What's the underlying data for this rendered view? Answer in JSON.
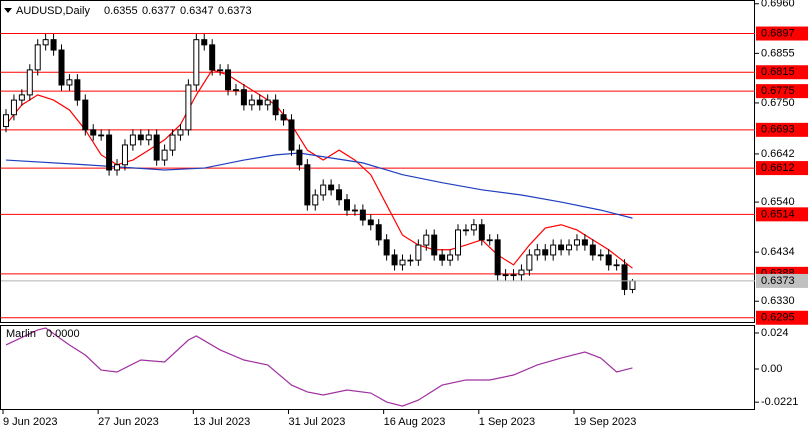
{
  "chart_data": {
    "type": "candlestick",
    "symbol": "AUDUSD,Daily",
    "up_color": "#ffffff",
    "down_color": "#000000",
    "categories": [
      "9 Jun 2023",
      null,
      null,
      null,
      null,
      null,
      null,
      null,
      null,
      null,
      null,
      null,
      "27 Jun 2023",
      null,
      null,
      null,
      null,
      null,
      null,
      null,
      null,
      null,
      null,
      null,
      "13 Jul 2023",
      null,
      null,
      null,
      null,
      null,
      null,
      null,
      null,
      null,
      null,
      null,
      "31 Jul 2023",
      null,
      null,
      null,
      null,
      null,
      null,
      null,
      null,
      null,
      null,
      null,
      "16 Aug 2023",
      null,
      null,
      null,
      null,
      null,
      null,
      null,
      null,
      null,
      null,
      null,
      "1 Sep 2023",
      null,
      null,
      null,
      null,
      null,
      null,
      null,
      null,
      null,
      null,
      null,
      "19 Sep 2023",
      null,
      null,
      null,
      null,
      null,
      null,
      null
    ],
    "ohlc": [
      [
        0.67,
        0.6737,
        0.6688,
        0.6725
      ],
      [
        0.6725,
        0.6768,
        0.6713,
        0.6756
      ],
      [
        0.6756,
        0.6779,
        0.6744,
        0.6767
      ],
      [
        0.6767,
        0.6832,
        0.6755,
        0.682
      ],
      [
        0.682,
        0.6885,
        0.6808,
        0.6873
      ],
      [
        0.6873,
        0.6896,
        0.6861,
        0.6884
      ],
      [
        0.6884,
        0.6896,
        0.685,
        0.6862
      ],
      [
        0.6862,
        0.6874,
        0.6776,
        0.6788
      ],
      [
        0.6788,
        0.6811,
        0.6776,
        0.6799
      ],
      [
        0.6799,
        0.6811,
        0.6744,
        0.6756
      ],
      [
        0.6756,
        0.6768,
        0.6681,
        0.6693
      ],
      [
        0.6693,
        0.6705,
        0.667,
        0.6682
      ],
      [
        0.6682,
        0.6694,
        0.667,
        0.6682
      ],
      [
        0.6682,
        0.6694,
        0.6596,
        0.6608
      ],
      [
        0.6608,
        0.6631,
        0.6596,
        0.6619
      ],
      [
        0.6619,
        0.6673,
        0.6607,
        0.6661
      ],
      [
        0.6661,
        0.6694,
        0.6649,
        0.6682
      ],
      [
        0.6682,
        0.6694,
        0.666,
        0.6672
      ],
      [
        0.6672,
        0.6694,
        0.666,
        0.6682
      ],
      [
        0.6682,
        0.6694,
        0.6617,
        0.6629
      ],
      [
        0.6629,
        0.6662,
        0.6617,
        0.665
      ],
      [
        0.665,
        0.6694,
        0.6638,
        0.6682
      ],
      [
        0.6682,
        0.6705,
        0.667,
        0.6693
      ],
      [
        0.6693,
        0.68,
        0.6681,
        0.6788
      ],
      [
        0.6788,
        0.6896,
        0.6776,
        0.6884
      ],
      [
        0.6884,
        0.6896,
        0.6861,
        0.6873
      ],
      [
        0.6873,
        0.6885,
        0.6808,
        0.682
      ],
      [
        0.682,
        0.6832,
        0.6808,
        0.682
      ],
      [
        0.682,
        0.6832,
        0.6766,
        0.6778
      ],
      [
        0.6778,
        0.679,
        0.6766,
        0.6778
      ],
      [
        0.6778,
        0.679,
        0.6734,
        0.6746
      ],
      [
        0.6746,
        0.6768,
        0.6734,
        0.6756
      ],
      [
        0.6756,
        0.6768,
        0.6734,
        0.6746
      ],
      [
        0.6746,
        0.6768,
        0.6734,
        0.6756
      ],
      [
        0.6756,
        0.6768,
        0.6713,
        0.6725
      ],
      [
        0.6725,
        0.6737,
        0.6702,
        0.6714
      ],
      [
        0.6714,
        0.6726,
        0.6638,
        0.665
      ],
      [
        0.665,
        0.6662,
        0.6607,
        0.6619
      ],
      [
        0.6619,
        0.6631,
        0.6522,
        0.6534
      ],
      [
        0.6534,
        0.6567,
        0.6522,
        0.6555
      ],
      [
        0.6555,
        0.6588,
        0.6543,
        0.6576
      ],
      [
        0.6576,
        0.6588,
        0.6554,
        0.6566
      ],
      [
        0.6566,
        0.6578,
        0.6533,
        0.6545
      ],
      [
        0.6545,
        0.6557,
        0.6511,
        0.6523
      ],
      [
        0.6523,
        0.6535,
        0.6511,
        0.6523
      ],
      [
        0.6523,
        0.6535,
        0.649,
        0.6502
      ],
      [
        0.6502,
        0.6514,
        0.648,
        0.6492
      ],
      [
        0.6492,
        0.6504,
        0.6448,
        0.646
      ],
      [
        0.646,
        0.6472,
        0.6416,
        0.6428
      ],
      [
        0.6428,
        0.644,
        0.6395,
        0.6407
      ],
      [
        0.6407,
        0.6429,
        0.6395,
        0.6417
      ],
      [
        0.6417,
        0.6429,
        0.6405,
        0.6417
      ],
      [
        0.6417,
        0.6461,
        0.6405,
        0.6449
      ],
      [
        0.6449,
        0.6482,
        0.6437,
        0.647
      ],
      [
        0.647,
        0.6482,
        0.6416,
        0.6428
      ],
      [
        0.6428,
        0.644,
        0.6405,
        0.6417
      ],
      [
        0.6417,
        0.644,
        0.6405,
        0.6428
      ],
      [
        0.6428,
        0.6493,
        0.6416,
        0.6481
      ],
      [
        0.6481,
        0.6493,
        0.6469,
        0.6481
      ],
      [
        0.6481,
        0.6504,
        0.6469,
        0.6492
      ],
      [
        0.6492,
        0.6504,
        0.6448,
        0.646
      ],
      [
        0.646,
        0.6472,
        0.6448,
        0.646
      ],
      [
        0.646,
        0.6472,
        0.6374,
        0.6386
      ],
      [
        0.6386,
        0.6398,
        0.6374,
        0.6386
      ],
      [
        0.6386,
        0.6398,
        0.6374,
        0.6386
      ],
      [
        0.6386,
        0.6408,
        0.6374,
        0.6396
      ],
      [
        0.6396,
        0.644,
        0.6384,
        0.6428
      ],
      [
        0.6428,
        0.6451,
        0.6416,
        0.6439
      ],
      [
        0.6439,
        0.6451,
        0.6416,
        0.6428
      ],
      [
        0.6428,
        0.6461,
        0.6416,
        0.6449
      ],
      [
        0.6449,
        0.6461,
        0.6427,
        0.6439
      ],
      [
        0.6439,
        0.6461,
        0.6427,
        0.6449
      ],
      [
        0.6449,
        0.6472,
        0.6437,
        0.646
      ],
      [
        0.646,
        0.6472,
        0.6437,
        0.6449
      ],
      [
        0.6449,
        0.6461,
        0.6416,
        0.6428
      ],
      [
        0.6428,
        0.644,
        0.6416,
        0.6428
      ],
      [
        0.6428,
        0.644,
        0.6395,
        0.6407
      ],
      [
        0.6407,
        0.6419,
        0.6395,
        0.6407
      ],
      [
        0.6407,
        0.6419,
        0.6343,
        0.6355
      ],
      [
        0.6355,
        0.6377,
        0.6347,
        0.6373
      ]
    ],
    "ylim": [
      0.6286,
      0.6968
    ],
    "yticks": [
      {
        "value": 0.696,
        "label": "0.6960"
      },
      0.6855,
      {
        "value": 0.675,
        "label": "0.6750"
      },
      0.6642,
      {
        "value": 0.654,
        "label": "0.6540"
      },
      0.6434,
      {
        "value": 0.633,
        "label": "0.6330"
      }
    ],
    "levels": {
      "color": "#ff0000",
      "values": [
        0.6897,
        0.6815,
        0.6775,
        0.6693,
        0.6612,
        0.6514,
        0.6388,
        0.6295
      ]
    },
    "lines": [
      {
        "color": "#ff0000",
        "x": [
          0,
          2,
          4,
          6,
          8,
          10,
          12,
          14,
          16,
          18,
          20,
          22,
          24,
          26,
          28,
          30,
          32,
          34,
          36,
          38,
          40,
          42,
          44,
          46,
          48,
          50,
          52,
          54,
          56,
          58,
          60,
          62,
          64,
          66,
          68,
          70,
          72,
          74,
          76,
          78,
          79
        ],
        "values": [
          0.6704,
          0.6746,
          0.6767,
          0.6756,
          0.6735,
          0.6693,
          0.664,
          0.6619,
          0.6629,
          0.665,
          0.6672,
          0.6704,
          0.6767,
          0.682,
          0.6809,
          0.6788,
          0.6767,
          0.6746,
          0.6704,
          0.665,
          0.6629,
          0.665,
          0.6629,
          0.6598,
          0.6534,
          0.647,
          0.6449,
          0.6439,
          0.6439,
          0.6449,
          0.646,
          0.6428,
          0.6407,
          0.6449,
          0.6485,
          0.6492,
          0.6481,
          0.646,
          0.6439,
          0.6413,
          0.64
        ]
      },
      {
        "color": "#1f3fbf",
        "x": [
          0,
          10,
          20,
          25,
          30,
          34,
          37,
          40,
          45,
          50,
          55,
          60,
          65,
          70,
          75,
          79
        ],
        "values": [
          0.6629,
          0.6619,
          0.6608,
          0.6612,
          0.6629,
          0.664,
          0.6644,
          0.6636,
          0.6623,
          0.6598,
          0.6581,
          0.6566,
          0.6555,
          0.654,
          0.6523,
          0.6506
        ]
      }
    ],
    "indicator": {
      "name": "Marlin",
      "current": {
        "value": 0,
        "label": "0.0000"
      },
      "color": "#a030a0",
      "ylim": [
        -0.0273,
        0.0293
      ],
      "yticks": [
        0.024,
        {
          "value": 0,
          "label": "0.00"
        },
        -0.0221
      ],
      "x": [
        0,
        4,
        5,
        8,
        10,
        12,
        14,
        17,
        20,
        23,
        24,
        27,
        30,
        33,
        36,
        38,
        40,
        43,
        46,
        48,
        50,
        52,
        55,
        58,
        61,
        64,
        67,
        70,
        73,
        75,
        77,
        79
      ],
      "values": [
        0.016,
        0.026,
        0.0273,
        0.016,
        0.0093,
        -0.0007,
        -0.002,
        0.006,
        0.0047,
        0.0193,
        0.022,
        0.0127,
        0.006,
        0.0027,
        -0.0107,
        -0.0153,
        -0.0173,
        -0.014,
        -0.016,
        -0.022,
        -0.0247,
        -0.0207,
        -0.0107,
        -0.0073,
        -0.0073,
        -0.004,
        0.0027,
        0.0073,
        0.0113,
        0.0073,
        -0.002,
        0.0007
      ]
    }
  }
}
